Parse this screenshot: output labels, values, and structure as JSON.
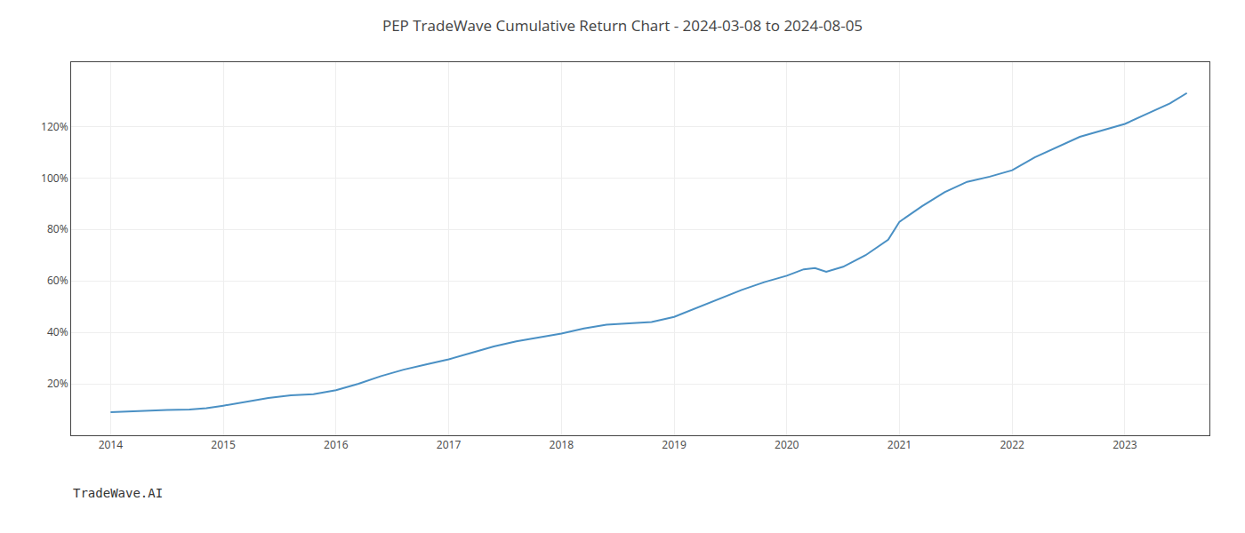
{
  "chart_data": {
    "type": "line",
    "title": "PEP TradeWave Cumulative Return Chart - 2024-03-08 to 2024-08-05",
    "annotations": [
      {
        "text": "TradeWave.AI"
      }
    ],
    "x": [
      2014.0,
      2014.15,
      2014.3,
      2014.5,
      2014.7,
      2014.85,
      2015.0,
      2015.2,
      2015.4,
      2015.6,
      2015.8,
      2016.0,
      2016.2,
      2016.4,
      2016.6,
      2016.8,
      2017.0,
      2017.2,
      2017.4,
      2017.6,
      2017.8,
      2018.0,
      2018.2,
      2018.4,
      2018.6,
      2018.8,
      2019.0,
      2019.2,
      2019.4,
      2019.6,
      2019.8,
      2020.0,
      2020.15,
      2020.25,
      2020.35,
      2020.5,
      2020.7,
      2020.9,
      2021.0,
      2021.2,
      2021.4,
      2021.6,
      2021.8,
      2022.0,
      2022.2,
      2022.4,
      2022.6,
      2022.8,
      2023.0,
      2023.2,
      2023.4,
      2023.55
    ],
    "values": [
      9.0,
      9.3,
      9.6,
      9.8,
      10.0,
      10.5,
      11.5,
      13.0,
      14.5,
      15.5,
      16.0,
      17.5,
      20.0,
      23.0,
      25.5,
      27.5,
      29.5,
      32.0,
      34.5,
      36.5,
      38.0,
      39.5,
      41.5,
      43.0,
      43.5,
      44.0,
      46.0,
      49.5,
      53.0,
      56.5,
      59.5,
      62.0,
      64.5,
      65.0,
      63.5,
      65.5,
      70.0,
      76.0,
      83.0,
      89.0,
      94.5,
      98.5,
      100.5,
      103.0,
      108.0,
      112.0,
      116.0,
      118.5,
      121.0,
      125.0,
      129.0,
      133.0
    ],
    "color": "#4a90c4",
    "xlim": [
      2013.65,
      2023.75
    ],
    "xticks": [
      2014,
      2015,
      2016,
      2017,
      2018,
      2019,
      2020,
      2021,
      2022,
      2023
    ],
    "ylim": [
      0,
      145
    ],
    "yticks": [
      {
        "value": 20,
        "label": "20%"
      },
      {
        "value": 40,
        "label": "40%"
      },
      {
        "value": 60,
        "label": "60%"
      },
      {
        "value": 80,
        "label": "80%"
      },
      {
        "value": 100,
        "label": "100%"
      },
      {
        "value": 120,
        "label": "120%"
      }
    ],
    "grid": true
  }
}
